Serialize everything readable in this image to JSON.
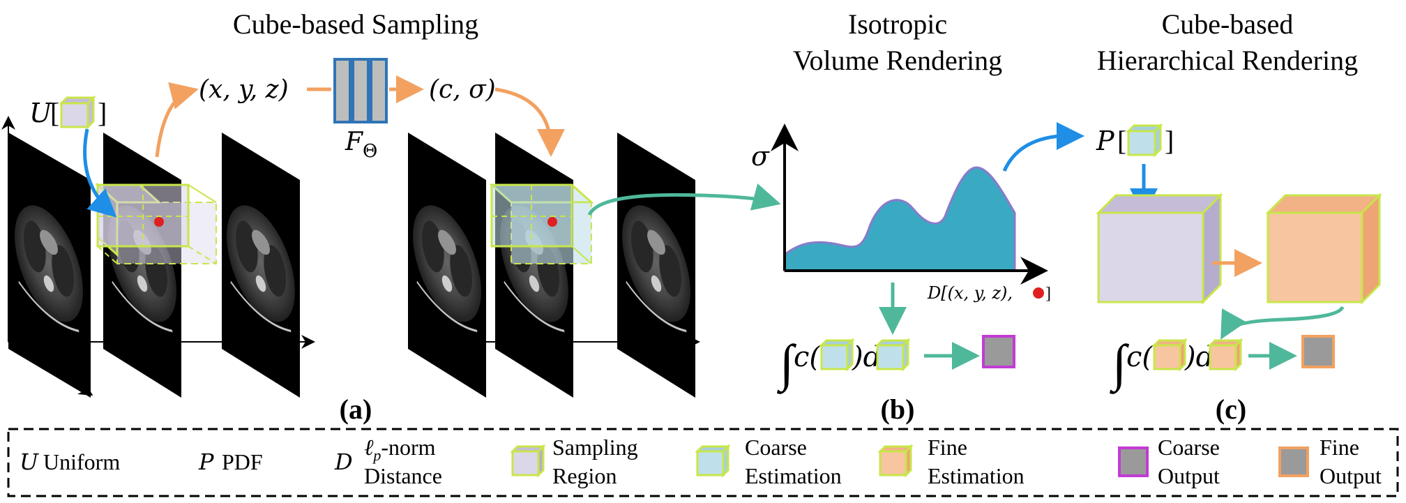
{
  "titles": {
    "sampling": "Cube-based Sampling",
    "isotropic_line1": "Isotropic",
    "isotropic_line2": "Volume Rendering",
    "hier_line1": "Cube-based",
    "hier_line2": "Hierarchical Rendering"
  },
  "panel_labels": {
    "a": "(a)",
    "b": "(b)",
    "c": "(c)"
  },
  "math": {
    "uniform_symbol": "U",
    "pdf_symbol": "P",
    "xyz": "(x, y, z)",
    "c_sigma": "(c, σ)",
    "f_theta": "F",
    "f_theta_sub": "Θ",
    "sigma_axis": "σ",
    "distance_axis": "D[(x, y, z),",
    "distance_axis_close": "]",
    "integral_symbol": "∫",
    "c_open": "c(",
    "close_d": ")d"
  },
  "legend": {
    "items": [
      {
        "symbol": "U",
        "text": [
          "Uniform"
        ]
      },
      {
        "symbol": "P",
        "text": [
          "PDF"
        ]
      },
      {
        "symbol": "D",
        "text": [
          "ℓp-norm",
          "Distance"
        ]
      },
      {
        "text": [
          "Sampling",
          "Region"
        ],
        "icon": "purple-cube-icon"
      },
      {
        "text": [
          "Coarse",
          "Estimation"
        ],
        "icon": "blue-cube-icon"
      },
      {
        "text": [
          "Fine",
          "Estimation"
        ],
        "icon": "orange-cube-icon"
      },
      {
        "text": [
          "Coarse",
          "Output"
        ],
        "icon": "coarse-output-square-icon"
      },
      {
        "text": [
          "Fine",
          "Output"
        ],
        "icon": "fine-output-square-icon"
      }
    ],
    "norm_prefix": "ℓ",
    "norm_sub": "p",
    "norm_suffix": "-norm"
  },
  "colors": {
    "purple_cube": "#dcd6e9",
    "blue_cube": "#bfe0ea",
    "orange_cube": "#f7c59f",
    "cube_edge": "#c8e64a",
    "arrow_blue": "#1e8ee6",
    "arrow_orange": "#f2a160",
    "arrow_green": "#4fb89a",
    "curve_fill": "#3aa9c2",
    "network_block": "#2f74b5",
    "coarse_output_border": "#c23bd4",
    "fine_output_border": "#f2a160",
    "output_fill": "#9a9a9a",
    "red_point": "#e02020"
  }
}
